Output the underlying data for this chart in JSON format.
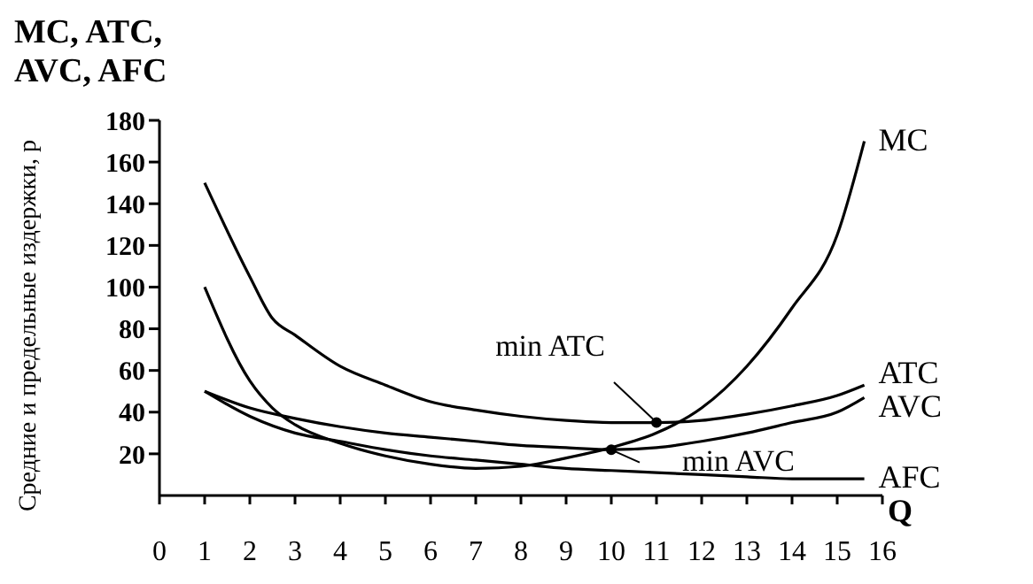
{
  "chart_data": {
    "type": "line",
    "title": "MC, ATC, AVC, AFC",
    "xlabel": "Q",
    "ylabel": "Средние и предельные издержки, р",
    "xlim": [
      0,
      16
    ],
    "xticks": [
      0,
      1,
      2,
      3,
      4,
      5,
      6,
      7,
      8,
      9,
      10,
      11,
      12,
      13,
      14,
      15,
      16
    ],
    "ylim": [
      0,
      180
    ],
    "yticks": [
      20,
      40,
      60,
      80,
      100,
      120,
      140,
      160,
      180
    ],
    "grid": false,
    "legend": false,
    "marker": "none",
    "line_style": "solid",
    "series": [
      {
        "name": "MC",
        "color": "#000000",
        "x": [
          1,
          2,
          2.5,
          3,
          4,
          5,
          6,
          7,
          8,
          9,
          10,
          11,
          12,
          13,
          14,
          15,
          15.6
        ],
        "values": [
          100,
          55,
          42,
          34,
          25,
          19,
          15,
          13,
          14,
          18,
          23,
          30,
          42,
          62,
          90,
          125,
          170
        ]
      },
      {
        "name": "ATC",
        "color": "#000000",
        "x": [
          1,
          2,
          2.5,
          3,
          4,
          5,
          6,
          7,
          8,
          9,
          10,
          11,
          12,
          13,
          14,
          15,
          15.6
        ],
        "values": [
          150,
          105,
          85,
          77,
          62,
          53,
          45,
          41,
          38,
          36,
          35,
          35,
          36,
          39,
          43,
          48,
          53
        ]
      },
      {
        "name": "AVC",
        "color": "#000000",
        "x": [
          1,
          2,
          3,
          4,
          5,
          6,
          7,
          8,
          9,
          10,
          11,
          12,
          13,
          14,
          15,
          15.6
        ],
        "values": [
          50,
          42,
          37,
          33,
          30,
          28,
          26,
          24,
          23,
          22,
          23,
          26,
          30,
          35,
          40,
          47
        ]
      },
      {
        "name": "AFC",
        "color": "#000000",
        "x": [
          1,
          2,
          3,
          4,
          5,
          6,
          7,
          8,
          9,
          10,
          11,
          12,
          13,
          14,
          15,
          15.6
        ],
        "values": [
          50,
          38,
          30,
          26,
          22,
          19,
          17,
          15,
          13,
          12,
          11,
          10,
          9,
          8,
          8,
          8
        ]
      }
    ],
    "annotations": [
      {
        "text": "min ATC",
        "x": 11,
        "y": 35
      },
      {
        "text": "min AVC",
        "x": 10,
        "y": 22
      }
    ]
  }
}
